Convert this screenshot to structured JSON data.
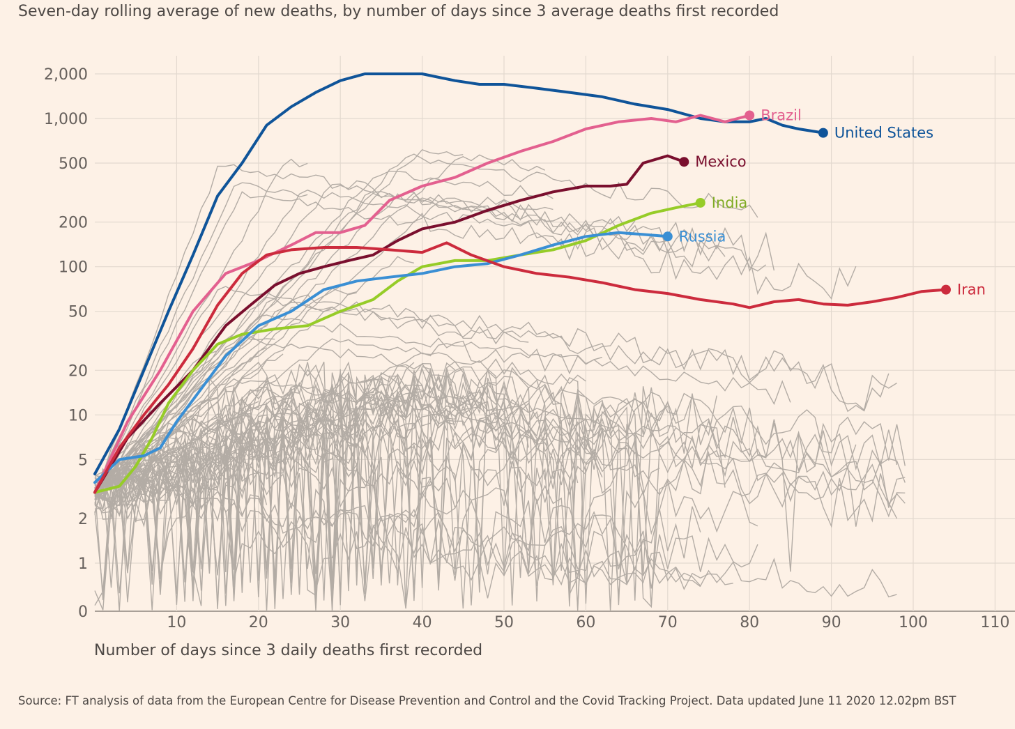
{
  "subtitle": "Seven-day rolling average of new deaths, by number of days since 3 average deaths first recorded",
  "source": "Source: FT analysis of data from the European Centre for Disease Prevention and Control and the Covid Tracking Project. Data updated June 11 2020 12.02pm BST",
  "colors": {
    "background": "#fdf1e6",
    "grid": "#e3d9cf",
    "background_lines": "#b3aca5"
  },
  "chart_data": {
    "type": "line",
    "title": "Seven-day rolling average of new deaths, by number of days since 3 average deaths first recorded",
    "xlabel": "Number of days since 3 daily deaths first recorded",
    "ylabel": "",
    "y_scale": "log (values below 1 fall to 0)",
    "xlim": [
      0,
      111
    ],
    "ylim": [
      0,
      2000
    ],
    "x_ticks": [
      10,
      20,
      30,
      40,
      50,
      60,
      70,
      80,
      90,
      100,
      110
    ],
    "y_ticks": [
      {
        "value": 0,
        "label": "0"
      },
      {
        "value": 1,
        "label": "1"
      },
      {
        "value": 2,
        "label": "2"
      },
      {
        "value": 5,
        "label": "5"
      },
      {
        "value": 10,
        "label": "10"
      },
      {
        "value": 20,
        "label": "20"
      },
      {
        "value": 50,
        "label": "50"
      },
      {
        "value": 100,
        "label": "100"
      },
      {
        "value": 200,
        "label": "200"
      },
      {
        "value": 500,
        "label": "500"
      },
      {
        "value": 1000,
        "label": "1,000"
      },
      {
        "value": 2000,
        "label": "2,000"
      }
    ],
    "series": [
      {
        "name": "United States",
        "color": "#0f5499",
        "label_color": "#0f5499",
        "points": [
          [
            0,
            4
          ],
          [
            3,
            8
          ],
          [
            6,
            20
          ],
          [
            9,
            50
          ],
          [
            12,
            120
          ],
          [
            15,
            300
          ],
          [
            18,
            500
          ],
          [
            21,
            900
          ],
          [
            24,
            1200
          ],
          [
            27,
            1500
          ],
          [
            30,
            1800
          ],
          [
            33,
            2000
          ],
          [
            36,
            2000
          ],
          [
            40,
            2000
          ],
          [
            44,
            1800
          ],
          [
            47,
            1700
          ],
          [
            50,
            1700
          ],
          [
            54,
            1600
          ],
          [
            58,
            1500
          ],
          [
            62,
            1400
          ],
          [
            66,
            1250
          ],
          [
            70,
            1150
          ],
          [
            74,
            1000
          ],
          [
            77,
            950
          ],
          [
            80,
            950
          ],
          [
            82,
            1000
          ],
          [
            84,
            900
          ],
          [
            86,
            850
          ],
          [
            89,
            800
          ]
        ]
      },
      {
        "name": "Brazil",
        "color": "#e3608f",
        "label_color": "#e3608f",
        "points": [
          [
            0,
            3
          ],
          [
            4,
            9
          ],
          [
            8,
            20
          ],
          [
            12,
            50
          ],
          [
            16,
            90
          ],
          [
            20,
            110
          ],
          [
            24,
            140
          ],
          [
            27,
            170
          ],
          [
            30,
            170
          ],
          [
            33,
            190
          ],
          [
            36,
            280
          ],
          [
            40,
            350
          ],
          [
            44,
            400
          ],
          [
            48,
            500
          ],
          [
            52,
            600
          ],
          [
            56,
            700
          ],
          [
            60,
            850
          ],
          [
            64,
            950
          ],
          [
            68,
            1000
          ],
          [
            71,
            950
          ],
          [
            74,
            1050
          ],
          [
            77,
            950
          ],
          [
            80,
            1050
          ]
        ]
      },
      {
        "name": "Mexico",
        "color": "#7a0f2e",
        "label_color": "#7a0f2e",
        "points": [
          [
            0,
            3
          ],
          [
            4,
            7
          ],
          [
            8,
            12
          ],
          [
            12,
            20
          ],
          [
            16,
            40
          ],
          [
            19,
            55
          ],
          [
            22,
            75
          ],
          [
            25,
            90
          ],
          [
            28,
            100
          ],
          [
            31,
            110
          ],
          [
            34,
            120
          ],
          [
            37,
            150
          ],
          [
            40,
            180
          ],
          [
            44,
            200
          ],
          [
            48,
            240
          ],
          [
            52,
            280
          ],
          [
            56,
            320
          ],
          [
            60,
            350
          ],
          [
            63,
            350
          ],
          [
            65,
            360
          ],
          [
            67,
            500
          ],
          [
            70,
            560
          ],
          [
            72,
            510
          ]
        ]
      },
      {
        "name": "India",
        "color": "#96cc28",
        "label_color": "#7fab24",
        "points": [
          [
            0,
            3
          ],
          [
            3,
            3.3
          ],
          [
            5,
            4.5
          ],
          [
            7,
            7
          ],
          [
            9,
            12
          ],
          [
            12,
            20
          ],
          [
            15,
            30
          ],
          [
            18,
            35
          ],
          [
            22,
            38
          ],
          [
            26,
            40
          ],
          [
            30,
            50
          ],
          [
            34,
            60
          ],
          [
            37,
            80
          ],
          [
            40,
            100
          ],
          [
            44,
            110
          ],
          [
            48,
            110
          ],
          [
            52,
            120
          ],
          [
            56,
            130
          ],
          [
            60,
            150
          ],
          [
            64,
            190
          ],
          [
            68,
            230
          ],
          [
            71,
            250
          ],
          [
            74,
            270
          ]
        ]
      },
      {
        "name": "Russia",
        "color": "#3a8fd4",
        "label_color": "#3a8fd4",
        "points": [
          [
            0,
            3.5
          ],
          [
            3,
            5
          ],
          [
            6,
            5.3
          ],
          [
            8,
            6
          ],
          [
            10,
            9
          ],
          [
            13,
            15
          ],
          [
            16,
            25
          ],
          [
            20,
            40
          ],
          [
            24,
            50
          ],
          [
            28,
            70
          ],
          [
            32,
            80
          ],
          [
            36,
            85
          ],
          [
            40,
            90
          ],
          [
            44,
            100
          ],
          [
            48,
            105
          ],
          [
            52,
            120
          ],
          [
            56,
            140
          ],
          [
            60,
            160
          ],
          [
            64,
            170
          ],
          [
            67,
            165
          ],
          [
            70,
            160
          ]
        ]
      },
      {
        "name": "Iran",
        "color": "#cc2b3d",
        "label_color": "#cc2b3d",
        "points": [
          [
            0,
            3
          ],
          [
            3,
            6
          ],
          [
            6,
            10
          ],
          [
            9,
            16
          ],
          [
            12,
            28
          ],
          [
            15,
            55
          ],
          [
            18,
            90
          ],
          [
            21,
            120
          ],
          [
            24,
            130
          ],
          [
            28,
            135
          ],
          [
            32,
            135
          ],
          [
            36,
            130
          ],
          [
            40,
            125
          ],
          [
            43,
            145
          ],
          [
            46,
            120
          ],
          [
            50,
            100
          ],
          [
            54,
            90
          ],
          [
            58,
            85
          ],
          [
            62,
            78
          ],
          [
            66,
            70
          ],
          [
            70,
            66
          ],
          [
            74,
            60
          ],
          [
            78,
            56
          ],
          [
            80,
            53
          ],
          [
            83,
            58
          ],
          [
            86,
            60
          ],
          [
            89,
            56
          ],
          [
            92,
            55
          ],
          [
            95,
            58
          ],
          [
            98,
            62
          ],
          [
            101,
            68
          ],
          [
            104,
            70
          ]
        ]
      }
    ]
  }
}
